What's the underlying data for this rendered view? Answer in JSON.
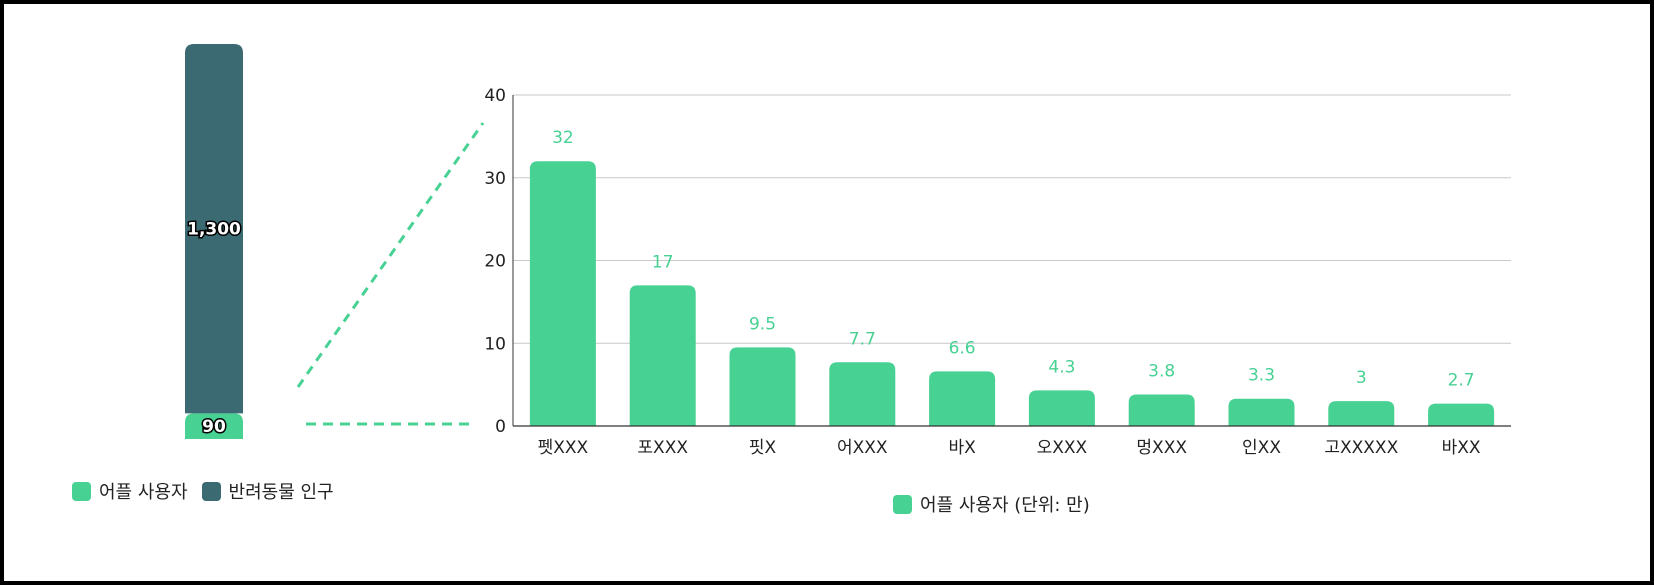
{
  "colors": {
    "users": "#47d193",
    "population": "#3c6a73",
    "grid": "#c9c9c9",
    "axis": "#333333"
  },
  "chart_data": [
    {
      "type": "bar",
      "stacked": true,
      "series": [
        {
          "name": "어플 사용자",
          "values": [
            90
          ],
          "label": "90",
          "color": "#47d193"
        },
        {
          "name": "반려동물 인구",
          "values": [
            1300
          ],
          "label": "1,300",
          "color": "#3c6a73"
        }
      ],
      "legend": "bottom",
      "grid": false
    },
    {
      "type": "bar",
      "categories": [
        "펫XXX",
        "포XXX",
        "핏X",
        "어XXX",
        "바X",
        "오XXX",
        "멍XXX",
        "인XX",
        "고XXXXX",
        "바XX"
      ],
      "series": [
        {
          "name": "어플 사용자 (단위: 만)",
          "values": [
            32,
            17,
            9.5,
            7.7,
            6.6,
            4.3,
            3.8,
            3.3,
            3,
            2.7
          ]
        }
      ],
      "value_labels": [
        "32",
        "17",
        "9.5",
        "7.7",
        "6.6",
        "4.3",
        "3.8",
        "3.3",
        "3",
        "2.7"
      ],
      "yticks": [
        "0",
        "10",
        "20",
        "30",
        "40"
      ],
      "ylim": [
        0,
        40
      ],
      "grid": true,
      "legend": "bottom-center"
    }
  ]
}
